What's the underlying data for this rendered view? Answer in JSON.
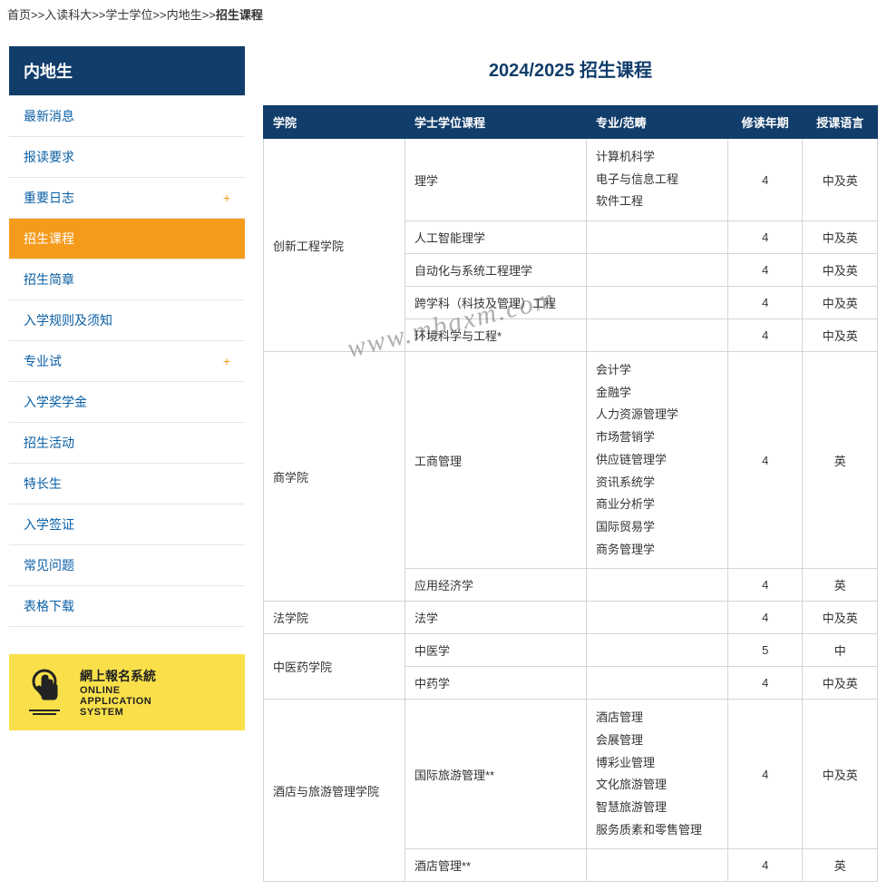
{
  "breadcrumb": {
    "sep": ">>",
    "items": [
      "首页",
      "入读科大",
      "学士学位",
      "内地生"
    ],
    "current": "招生课程"
  },
  "sidebar": {
    "title": "内地生",
    "items": [
      {
        "label": "最新消息",
        "expandable": false,
        "active": false
      },
      {
        "label": "报读要求",
        "expandable": false,
        "active": false
      },
      {
        "label": "重要日志",
        "expandable": true,
        "active": false
      },
      {
        "label": "招生课程",
        "expandable": false,
        "active": true
      },
      {
        "label": "招生简章",
        "expandable": false,
        "active": false
      },
      {
        "label": "入学规则及须知",
        "expandable": false,
        "active": false
      },
      {
        "label": "专业试",
        "expandable": true,
        "active": false
      },
      {
        "label": "入学奖学金",
        "expandable": false,
        "active": false
      },
      {
        "label": "招生活动",
        "expandable": false,
        "active": false
      },
      {
        "label": "特长生",
        "expandable": false,
        "active": false
      },
      {
        "label": "入学签证",
        "expandable": false,
        "active": false
      },
      {
        "label": "常见问题",
        "expandable": false,
        "active": false
      },
      {
        "label": "表格下载",
        "expandable": false,
        "active": false
      }
    ]
  },
  "banner": {
    "line1_zh": "網上報名系統",
    "line2_en1": "ONLINE",
    "line2_en2": "APPLICATION",
    "line2_en3": "SYSTEM",
    "bg_color": "#f9e04a"
  },
  "page_title": "2024/2025 招生课程",
  "watermark": "www.mbaxm.com",
  "table": {
    "columns": [
      "学院",
      "学士学位课程",
      "专业/范畴",
      "修读年期",
      "授课语言"
    ],
    "col_align": [
      "left",
      "left",
      "left",
      "center",
      "center"
    ],
    "header_bg": "#113d6b",
    "header_color": "#ffffff",
    "border_color": "#cfd6dc",
    "rows": [
      {
        "faculty": "创新工程学院",
        "faculty_rowspan": 5,
        "program": "理学",
        "majors": [
          "计算机科学",
          "电子与信息工程",
          "软件工程"
        ],
        "years": "4",
        "language": "中及英"
      },
      {
        "program": "人工智能理学",
        "majors": [],
        "years": "4",
        "language": "中及英"
      },
      {
        "program": "自动化与系统工程理学",
        "majors": [],
        "years": "4",
        "language": "中及英"
      },
      {
        "program": "跨学科（科技及管理）工程",
        "majors": [],
        "years": "4",
        "language": "中及英"
      },
      {
        "program": "环境科学与工程*",
        "majors": [],
        "years": "4",
        "language": "中及英"
      },
      {
        "faculty": "商学院",
        "faculty_rowspan": 2,
        "program": "工商管理",
        "majors": [
          "会计学",
          "金融学",
          "人力资源管理学",
          "市场营销学",
          "供应链管理学",
          "资讯系统学",
          "商业分析学",
          "国际贸易学",
          "商务管理学"
        ],
        "years": "4",
        "language": "英"
      },
      {
        "program": "应用经济学",
        "majors": [],
        "years": "4",
        "language": "英"
      },
      {
        "faculty": "法学院",
        "faculty_rowspan": 1,
        "program": "法学",
        "majors": [],
        "years": "4",
        "language": "中及英"
      },
      {
        "faculty": "中医药学院",
        "faculty_rowspan": 2,
        "program": "中医学",
        "majors": [],
        "years": "5",
        "language": "中"
      },
      {
        "program": "中药学",
        "majors": [],
        "years": "4",
        "language": "中及英"
      },
      {
        "faculty": "酒店与旅游管理学院",
        "faculty_rowspan": 2,
        "program": "国际旅游管理**",
        "majors": [
          "酒店管理",
          "会展管理",
          "博彩业管理",
          "文化旅游管理",
          "智慧旅游管理",
          "服务质素和零售管理"
        ],
        "years": "4",
        "language": "中及英"
      },
      {
        "program": "酒店管理**",
        "majors": [],
        "years": "4",
        "language": "英"
      }
    ]
  },
  "colors": {
    "primary": "#113d6b",
    "accent": "#f59b1c",
    "link": "#0a5fa5"
  }
}
